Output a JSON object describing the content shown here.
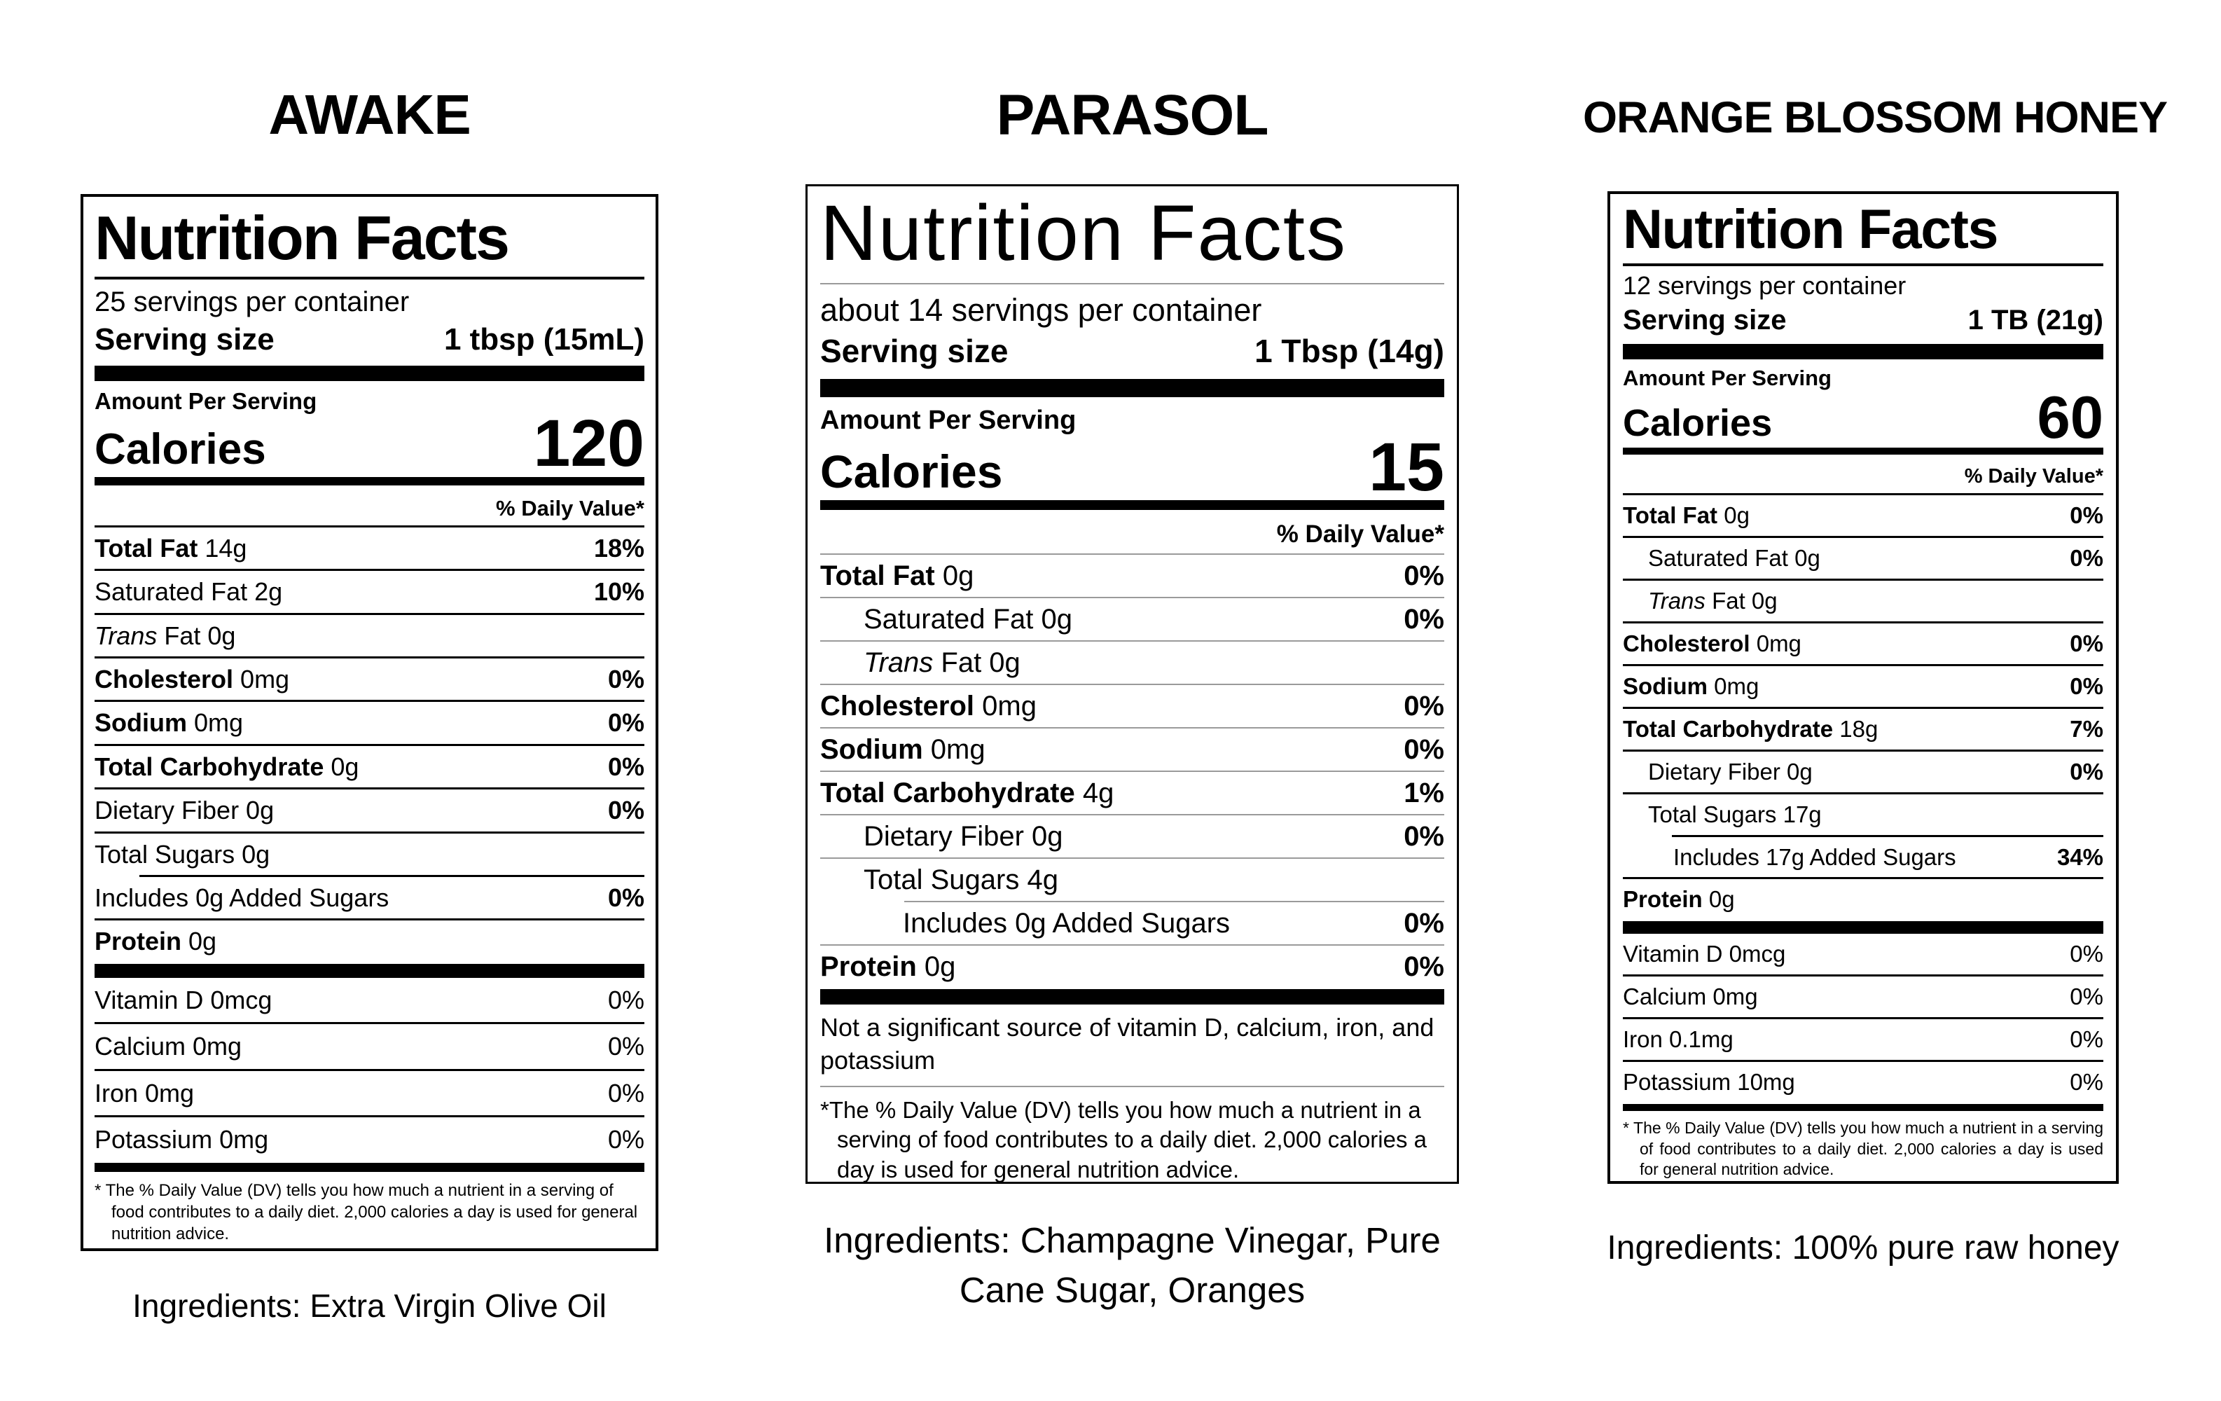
{
  "page": {
    "background": "#ffffff",
    "text_color": "#000000",
    "divider_gray": "#9a9a9a"
  },
  "labels": [
    {
      "title": "AWAKE",
      "facts": {
        "heading": "Nutrition Facts",
        "servings": "25 servings per container",
        "serving_size_label": "Serving size",
        "serving_size_value": "1 tbsp (15mL)",
        "amount_per_serving": "Amount Per Serving",
        "calories_label": "Calories",
        "calories_value": "120",
        "daily_value_header": "% Daily Value*",
        "rows": [
          {
            "b": "Total Fat",
            "r": " 14g",
            "dv": "18%"
          },
          {
            "r": "Saturated Fat 2g",
            "dv": "10%"
          },
          {
            "i": "Trans",
            "r": " Fat 0g",
            "dv": ""
          },
          {
            "b": "Cholesterol",
            "r": " 0mg",
            "dv": "0%"
          },
          {
            "b": "Sodium",
            "r": " 0mg",
            "dv": "0%"
          },
          {
            "b": "Total Carbohydrate",
            "r": " 0g",
            "dv": "0%"
          },
          {
            "r": "Dietary Fiber 0g",
            "dv": "0%"
          },
          {
            "r": "Total Sugars 0g",
            "dv": ""
          },
          {
            "r": "Includes 0g Added Sugars",
            "dv": "0%"
          },
          {
            "b": "Protein",
            "r": " 0g",
            "dv": ""
          }
        ],
        "vitamins": [
          {
            "n": "Vitamin D 0mcg",
            "dv": "0%"
          },
          {
            "n": "Calcium 0mg",
            "dv": "0%"
          },
          {
            "n": "Iron 0mg",
            "dv": "0%"
          },
          {
            "n": "Potassium 0mg",
            "dv": "0%"
          }
        ],
        "footnote": "* The % Daily Value (DV) tells you how much a nutrient in a serving of food contributes to a daily diet. 2,000 calories a day is used for general nutrition advice."
      },
      "ingredients": "Ingredients: Extra Virgin Olive Oil"
    },
    {
      "title": "PARASOL",
      "facts": {
        "heading": "Nutrition Facts",
        "servings": "about 14 servings per container",
        "serving_size_label": "Serving size",
        "serving_size_value": "1 Tbsp (14g)",
        "amount_per_serving": "Amount Per Serving",
        "calories_label": "Calories",
        "calories_value": "15",
        "daily_value_header": "% Daily Value*",
        "rows": [
          {
            "b": "Total Fat",
            "r": " 0g",
            "dv": "0%"
          },
          {
            "r": "Saturated Fat 0g",
            "dv": "0%"
          },
          {
            "i": "Trans",
            "r": " Fat 0g",
            "dv": ""
          },
          {
            "b": "Cholesterol",
            "r": " 0mg",
            "dv": "0%"
          },
          {
            "b": "Sodium",
            "r": " 0mg",
            "dv": "0%"
          },
          {
            "b": "Total Carbohydrate",
            "r": " 4g",
            "dv": "1%"
          },
          {
            "r": "Dietary Fiber 0g",
            "dv": "0%"
          },
          {
            "r": "Total Sugars 4g",
            "dv": ""
          },
          {
            "r": "Includes 0g Added Sugars",
            "dv": "0%"
          },
          {
            "b": "Protein",
            "r": " 0g",
            "dv": "0%"
          }
        ],
        "not_significant_note": "Not a significant source of vitamin D, calcium, iron, and potassium",
        "footnote": "*The % Daily Value (DV) tells you how much a nutrient in a serving of food contributes to a daily diet. 2,000 calories a day is used for general nutrition advice."
      },
      "ingredients": "Ingredients: Champagne Vinegar, Pure Cane Sugar, Oranges"
    },
    {
      "title": "ORANGE BLOSSOM HONEY",
      "facts": {
        "heading": "Nutrition Facts",
        "servings": "12 servings per container",
        "serving_size_label": "Serving size",
        "serving_size_value": "1 TB (21g)",
        "amount_per_serving": "Amount Per Serving",
        "calories_label": "Calories",
        "calories_value": "60",
        "daily_value_header": "% Daily Value*",
        "rows": [
          {
            "b": "Total Fat",
            "r": " 0g",
            "dv": "0%"
          },
          {
            "r": "Saturated Fat 0g",
            "dv": "0%"
          },
          {
            "i": "Trans",
            "r": " Fat 0g",
            "dv": ""
          },
          {
            "b": "Cholesterol",
            "r": " 0mg",
            "dv": "0%"
          },
          {
            "b": "Sodium",
            "r": " 0mg",
            "dv": "0%"
          },
          {
            "b": "Total Carbohydrate",
            "r": " 18g",
            "dv": "7%"
          },
          {
            "r": "Dietary Fiber 0g",
            "dv": "0%"
          },
          {
            "r": "Total Sugars 17g",
            "dv": ""
          },
          {
            "r": "Includes 17g Added Sugars",
            "dv": "34%"
          },
          {
            "b": "Protein",
            "r": " 0g",
            "dv": ""
          }
        ],
        "vitamins": [
          {
            "n": "Vitamin D 0mcg",
            "dv": "0%"
          },
          {
            "n": "Calcium 0mg",
            "dv": "0%"
          },
          {
            "n": "Iron 0.1mg",
            "dv": "0%"
          },
          {
            "n": "Potassium 10mg",
            "dv": "0%"
          }
        ],
        "footnote": "* The % Daily Value (DV) tells you how much a nutrient in a serving of food contributes to a daily diet. 2,000 calories a day is used for general nutrition advice."
      },
      "ingredients": "Ingredients: 100% pure raw honey"
    }
  ]
}
